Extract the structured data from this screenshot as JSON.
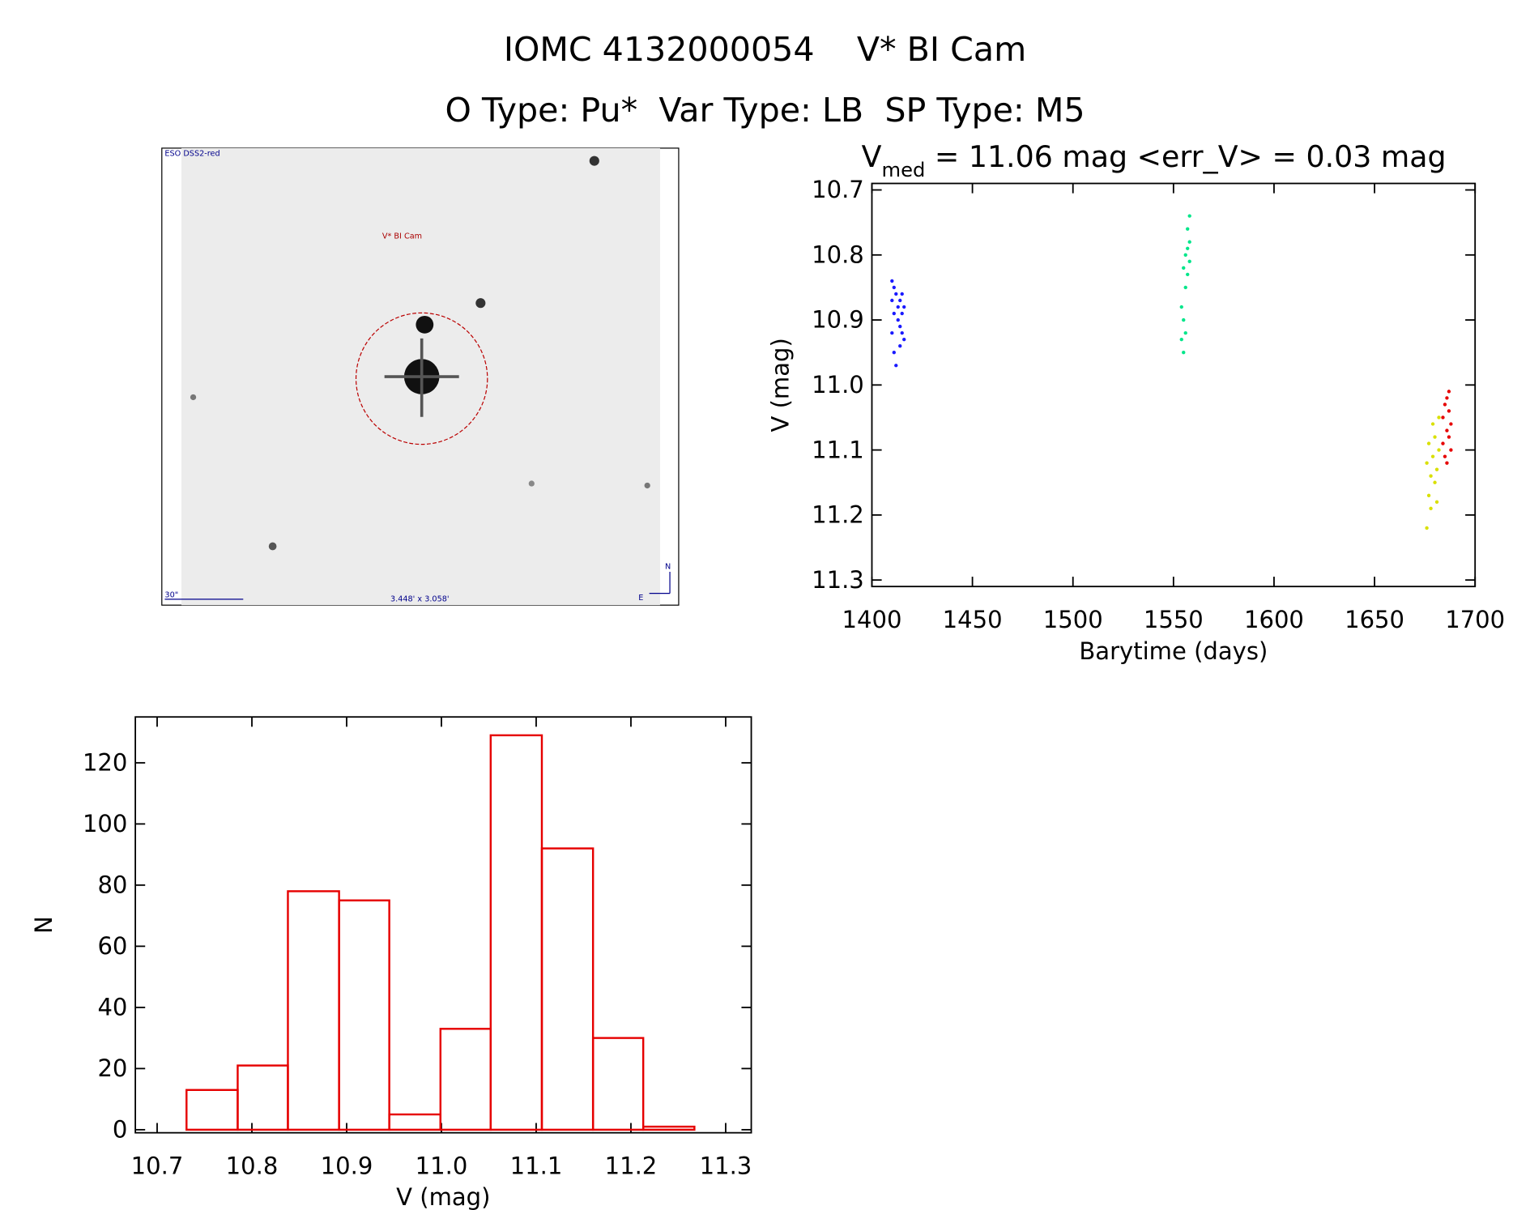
{
  "title": "IOMC 4132000054    V* BI Cam",
  "subtitle": "O Type: Pu*  Var Type: LB  SP Type: M5",
  "finder": {
    "survey": "ESO DSS2-red",
    "target": "V* BI Cam",
    "scale": "30\"",
    "size": "3.448' x 3.058'",
    "north": "N",
    "east": "E"
  },
  "chart_data": [
    {
      "type": "scatter",
      "title": "V",
      "title_subscript": "med",
      "title_rest": " = 11.06 mag <err_V> = 0.03 mag",
      "xlabel": "Barytime (days)",
      "ylabel": "V (mag)",
      "xlim": [
        1400,
        1700
      ],
      "ylim": [
        11.31,
        10.69
      ],
      "xticks": [
        1400,
        1450,
        1500,
        1550,
        1600,
        1650,
        1700
      ],
      "yticks": [
        10.7,
        10.8,
        10.9,
        {
          "value": 11,
          "label": "11.0"
        },
        11.1,
        11.2,
        11.3
      ],
      "series": [
        {
          "color": "#1a1aff",
          "x": [
            1410,
            1410,
            1410,
            1411,
            1411,
            1411,
            1412,
            1412,
            1413,
            1413,
            1414,
            1414,
            1414,
            1415,
            1415,
            1415,
            1416,
            1416
          ],
          "values": [
            10.84,
            10.87,
            10.92,
            10.85,
            10.89,
            10.95,
            10.86,
            10.97,
            10.88,
            10.9,
            10.87,
            10.91,
            10.94,
            10.86,
            10.89,
            10.92,
            10.88,
            10.93
          ]
        },
        {
          "color": "#00e68a",
          "x": [
            1554,
            1554,
            1555,
            1555,
            1555,
            1556,
            1556,
            1556,
            1557,
            1557,
            1557,
            1558,
            1558,
            1558
          ],
          "values": [
            10.88,
            10.93,
            10.9,
            10.95,
            10.82,
            10.85,
            10.8,
            10.92,
            10.79,
            10.76,
            10.83,
            10.74,
            10.78,
            10.81
          ]
        },
        {
          "color": "#d9e000",
          "x": [
            1676,
            1676,
            1677,
            1677,
            1678,
            1678,
            1679,
            1679,
            1680,
            1680,
            1681,
            1681,
            1682,
            1682
          ],
          "values": [
            11.12,
            11.22,
            11.09,
            11.17,
            11.14,
            11.19,
            11.06,
            11.11,
            11.15,
            11.08,
            11.13,
            11.18,
            11.05,
            11.1
          ]
        },
        {
          "color": "#e60000",
          "x": [
            1684,
            1684,
            1685,
            1685,
            1686,
            1686,
            1686,
            1687,
            1687,
            1687,
            1688,
            1688
          ],
          "values": [
            11.05,
            11.09,
            11.03,
            11.11,
            11.07,
            11.02,
            11.12,
            11.04,
            11.08,
            11.01,
            11.06,
            11.1
          ]
        }
      ]
    },
    {
      "type": "histogram",
      "xlabel": "V (mag)",
      "ylabel": "N",
      "color": "#e60000",
      "bins": [
        10.731,
        10.785,
        10.838,
        10.892,
        10.945,
        10.999,
        11.052,
        11.106,
        11.16,
        11.213,
        11.267
      ],
      "values": [
        13,
        21,
        78,
        75,
        5,
        33,
        129,
        92,
        30,
        1
      ],
      "xlim": [
        10.677,
        11.327
      ],
      "ylim": [
        -1,
        135
      ],
      "xticks": [
        10.7,
        10.8,
        10.9,
        {
          "value": 11,
          "label": "11.0"
        },
        11.1,
        11.2,
        11.3
      ],
      "yticks": [
        0,
        20,
        40,
        60,
        80,
        100,
        120
      ]
    }
  ]
}
